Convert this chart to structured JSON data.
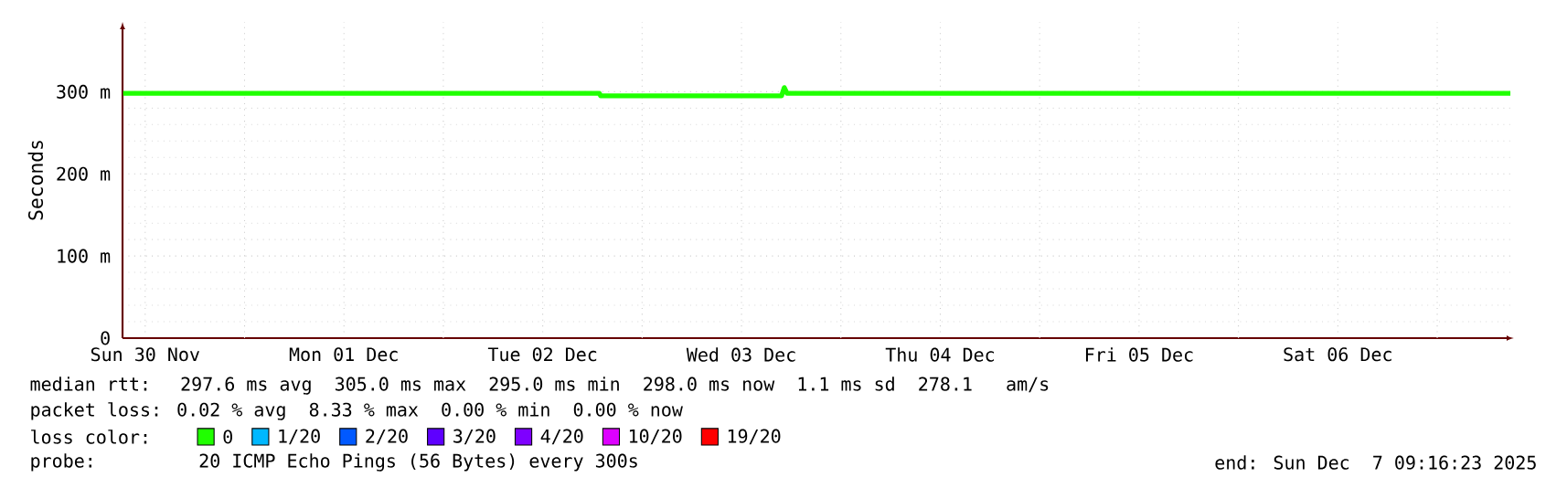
{
  "chart_data": {
    "type": "line",
    "ylabel": "Seconds",
    "x": [
      "2025-11-30T09:20",
      "2025-12-02T18:50",
      "2025-12-02T19:00",
      "2025-12-03T16:50",
      "2025-12-03T17:10",
      "2025-12-03T17:30",
      "2025-12-07T08:50"
    ],
    "series": [
      {
        "name": "0",
        "color": "#20ff00",
        "values": [
          298,
          298,
          295,
          295,
          305,
          298,
          298
        ]
      },
      {
        "name": "1/20",
        "color": "#00b8ff",
        "values": [
          null,
          null,
          null,
          null,
          null,
          null,
          null
        ]
      },
      {
        "name": "2/20",
        "color": "#0059ff",
        "values": [
          null,
          null,
          null,
          null,
          null,
          null,
          null
        ]
      },
      {
        "name": "3/20",
        "color": "#5e00ff",
        "values": [
          null,
          null,
          null,
          null,
          null,
          null,
          null
        ]
      },
      {
        "name": "4/20",
        "color": "#7e00ff",
        "values": [
          null,
          null,
          null,
          null,
          null,
          null,
          null
        ]
      },
      {
        "name": "10/20",
        "color": "#dd00ff",
        "values": [
          null,
          null,
          null,
          null,
          null,
          null,
          null
        ]
      },
      {
        "name": "19/20",
        "color": "#ff0000",
        "values": [
          null,
          null,
          null,
          null,
          null,
          null,
          null
        ]
      }
    ],
    "legend": "bottom",
    "legend_title": "loss color:",
    "xlim": [
      "2025-11-30T09:16",
      "2025-12-07T09:16"
    ],
    "xticks": [
      {
        "value": "2025-11-30T12:00",
        "label": "Sun 30 Nov"
      },
      {
        "value": "2025-12-01T00:00",
        "label": null
      },
      {
        "value": "2025-12-01T12:00",
        "label": "Mon 01 Dec"
      },
      {
        "value": "2025-12-02T00:00",
        "label": null
      },
      {
        "value": "2025-12-02T12:00",
        "label": "Tue 02 Dec"
      },
      {
        "value": "2025-12-03T00:00",
        "label": null
      },
      {
        "value": "2025-12-03T12:00",
        "label": "Wed 03 Dec"
      },
      {
        "value": "2025-12-04T00:00",
        "label": null
      },
      {
        "value": "2025-12-04T12:00",
        "label": "Thu 04 Dec"
      },
      {
        "value": "2025-12-05T00:00",
        "label": null
      },
      {
        "value": "2025-12-05T12:00",
        "label": "Fri 05 Dec"
      },
      {
        "value": "2025-12-06T00:00",
        "label": null
      },
      {
        "value": "2025-12-06T12:00",
        "label": "Sat 06 Dec"
      },
      {
        "value": "2025-12-07T00:00",
        "label": null
      }
    ],
    "ylim": [
      0,
      385
    ],
    "yticks": [
      0,
      {
        "value": 100,
        "label": "100 m"
      },
      {
        "value": 200,
        "label": "200 m"
      },
      {
        "value": 300,
        "label": "300 m"
      }
    ],
    "grid": true,
    "annotations": [
      "median rtt:  297.6 ms avg  305.0 ms max  295.0 ms min  298.0 ms now  1.1 ms sd  278.1   am/s",
      "packet loss: 0.02 % avg  8.33 % max  0.00 % min  0.00 % now",
      "probe:       20 ICMP Echo Pings (56 Bytes) every 300s",
      "end: Sun Dec  7 09:16:23 2025"
    ]
  }
}
